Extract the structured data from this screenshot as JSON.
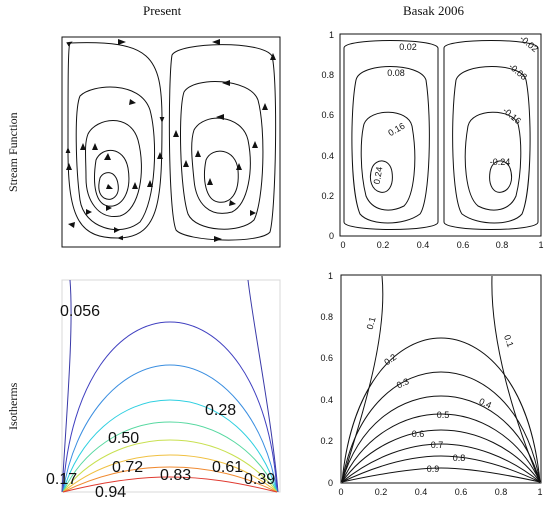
{
  "headers": {
    "left": "Present",
    "right": "Basak 2006"
  },
  "row_labels": {
    "top": "Stream Function",
    "bottom": "Isotherms"
  },
  "colors": {
    "ink": "#111111"
  },
  "basak_ticks": {
    "x": [
      "0",
      "0.2",
      "0.4",
      "0.6",
      "0.8",
      "1"
    ],
    "y": [
      "0",
      "0.2",
      "0.4",
      "0.6",
      "0.8",
      "1"
    ]
  },
  "basak_stream_labels": [
    "0.02",
    "0.08",
    "0.16",
    "0.24",
    "-0.02",
    "-0.08",
    "-0.16",
    "-0.24"
  ],
  "basak_isotherm_labels": [
    "0.1",
    "0.1",
    "0.2",
    "0.3",
    "0.4",
    "0.5",
    "0.6",
    "0.7",
    "0.8",
    "0.9"
  ],
  "present_isotherm_labels": [
    "0.056",
    "0.28",
    "0.50",
    "0.72",
    "0.83",
    "0.61",
    "0.17",
    "0.94",
    "0.39"
  ]
}
